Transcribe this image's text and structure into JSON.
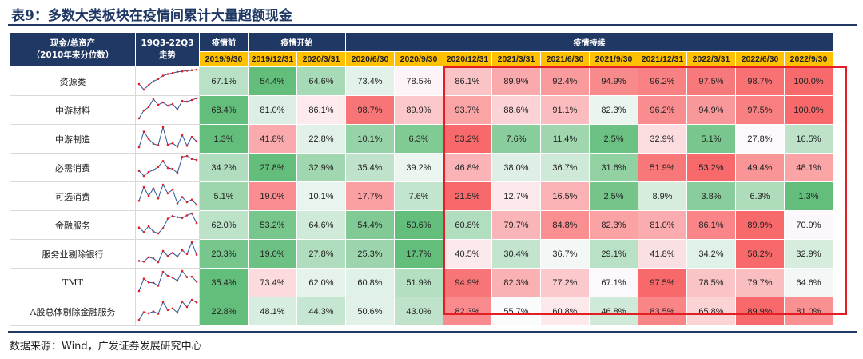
{
  "title": "表9：多数大类板块在疫情间累计大量超额现金",
  "header": {
    "metric_line1": "现金/总资产",
    "metric_line2": "（2010年来分位数）",
    "trend_line1": "19Q3-22Q3",
    "trend_line2": "走势",
    "group_pre": "疫情前",
    "group_start": "疫情开始",
    "group_cont": "疫情持续"
  },
  "dates": [
    "2019/9/30",
    "2019/12/31",
    "2020/3/31",
    "2020/6/30",
    "2020/9/30",
    "2020/12/31",
    "2021/3/31",
    "2021/6/30",
    "2021/9/30",
    "2021/12/31",
    "2022/3/31",
    "2022/6/30",
    "2022/9/30"
  ],
  "rows": [
    {
      "name": "资源类",
      "values": [
        67.1,
        54.4,
        64.6,
        73.4,
        78.5,
        86.1,
        89.9,
        92.4,
        94.9,
        96.2,
        97.5,
        98.7,
        100.0
      ]
    },
    {
      "name": "中游材料",
      "values": [
        68.4,
        81.0,
        86.1,
        98.7,
        89.9,
        93.7,
        88.6,
        91.1,
        82.3,
        96.2,
        94.9,
        97.5,
        100.0
      ]
    },
    {
      "name": "中游制造",
      "values": [
        1.3,
        41.8,
        22.8,
        10.1,
        6.3,
        53.2,
        7.6,
        11.4,
        2.5,
        32.9,
        5.1,
        27.8,
        16.5
      ]
    },
    {
      "name": "必需消费",
      "values": [
        34.2,
        27.8,
        32.9,
        35.4,
        39.2,
        46.8,
        38.0,
        36.7,
        31.6,
        51.9,
        53.2,
        49.4,
        48.1
      ]
    },
    {
      "name": "可选消费",
      "values": [
        5.1,
        19.0,
        10.1,
        17.7,
        7.6,
        21.5,
        12.7,
        16.5,
        2.5,
        8.9,
        3.8,
        6.3,
        1.3
      ]
    },
    {
      "name": "金融服务",
      "values": [
        62.0,
        53.2,
        64.6,
        54.4,
        50.6,
        60.8,
        79.7,
        84.8,
        82.3,
        81.0,
        86.1,
        89.9,
        70.9
      ]
    },
    {
      "name": "服务业剔除银行",
      "values": [
        20.3,
        19.0,
        27.8,
        25.3,
        17.7,
        40.5,
        30.4,
        36.7,
        29.1,
        41.8,
        34.2,
        58.2,
        32.9
      ]
    },
    {
      "name": "TMT",
      "values": [
        35.4,
        73.4,
        62.0,
        60.8,
        51.9,
        94.9,
        82.3,
        77.2,
        67.1,
        97.5,
        78.5,
        79.7,
        64.6
      ]
    },
    {
      "name": "A股总体剔除金融服务",
      "values": [
        22.8,
        48.1,
        44.3,
        50.6,
        43.0,
        82.3,
        55.7,
        60.8,
        46.8,
        83.5,
        65.8,
        89.9,
        81.0
      ]
    }
  ],
  "source": "数据来源：Wind，广发证券发展研究中心",
  "colors": {
    "header_bg": "#1f3864",
    "date_bg": "#ffc000",
    "high": "#f8696b",
    "mid": "#fcfcff",
    "low": "#63be7b",
    "box": "#e31e24"
  }
}
